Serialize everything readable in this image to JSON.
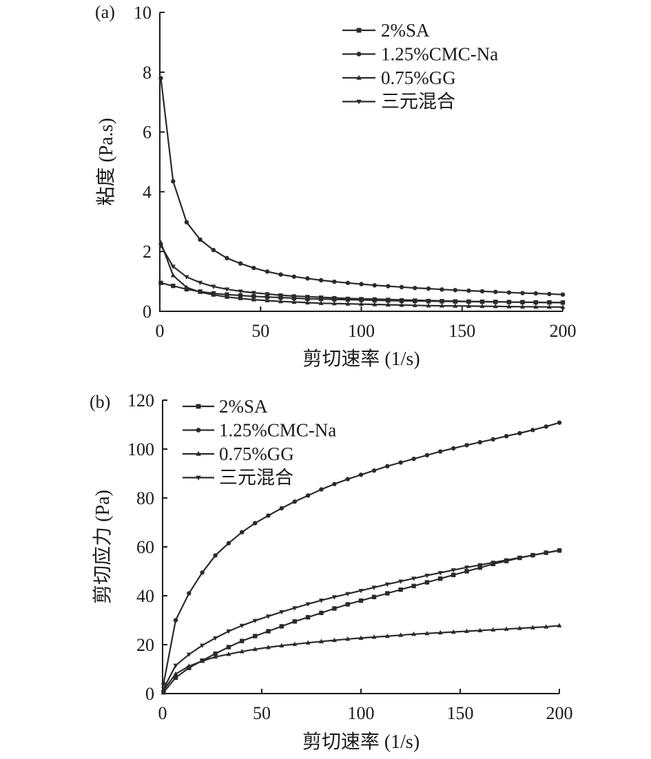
{
  "chart_data": [
    {
      "type": "line",
      "panel_label": "(a)",
      "xlabel": "剪切速率 (1/s)",
      "ylabel": "粘度 (Pa.s)",
      "xlim": [
        0,
        200
      ],
      "ylim": [
        0,
        10
      ],
      "xticks": [
        "0",
        "50",
        "100",
        "150",
        "200"
      ],
      "yticks": [
        "0",
        "2",
        "4",
        "6",
        "8",
        "10"
      ],
      "grid": false,
      "legend_position": "top-right",
      "series": [
        {
          "name": "2%SA",
          "marker": "square",
          "x": [
            0.5,
            6.6,
            13.3,
            20,
            26.6,
            33.3,
            40,
            46.6,
            53.3,
            60,
            66.6,
            73.3,
            80,
            86.6,
            93.3,
            100,
            106.6,
            113.3,
            120,
            126.6,
            133.3,
            140,
            146.6,
            153.3,
            160,
            166.6,
            173.3,
            180,
            186.6,
            193.3,
            200
          ],
          "y": [
            0.95,
            0.85,
            0.74,
            0.66,
            0.6,
            0.56,
            0.53,
            0.5,
            0.48,
            0.46,
            0.44,
            0.42,
            0.41,
            0.4,
            0.39,
            0.38,
            0.37,
            0.36,
            0.35,
            0.345,
            0.34,
            0.335,
            0.33,
            0.325,
            0.32,
            0.315,
            0.31,
            0.305,
            0.3,
            0.297,
            0.293
          ]
        },
        {
          "name": "1.25%CMC-Na",
          "marker": "circle",
          "x": [
            0.5,
            6.6,
            13.3,
            20,
            26.6,
            33.3,
            40,
            46.6,
            53.3,
            60,
            66.6,
            73.3,
            80,
            86.6,
            93.3,
            100,
            106.6,
            113.3,
            120,
            126.6,
            133.3,
            140,
            146.6,
            153.3,
            160,
            166.6,
            173.3,
            180,
            186.6,
            193.3,
            200
          ],
          "y": [
            7.8,
            4.35,
            2.98,
            2.4,
            2.05,
            1.78,
            1.6,
            1.45,
            1.33,
            1.23,
            1.16,
            1.1,
            1.04,
            0.99,
            0.95,
            0.91,
            0.87,
            0.84,
            0.81,
            0.78,
            0.76,
            0.73,
            0.71,
            0.69,
            0.67,
            0.65,
            0.63,
            0.61,
            0.6,
            0.58,
            0.56
          ]
        },
        {
          "name": "0.75%GG",
          "marker": "triangle-up",
          "x": [
            0.5,
            6.6,
            13.3,
            20,
            26.6,
            33.3,
            40,
            46.6,
            53.3,
            60,
            66.6,
            73.3,
            80,
            86.6,
            93.3,
            100,
            106.6,
            113.3,
            120,
            126.6,
            133.3,
            140,
            146.6,
            153.3,
            160,
            166.6,
            173.3,
            180,
            186.6,
            193.3,
            200
          ],
          "y": [
            2.3,
            1.2,
            0.8,
            0.64,
            0.55,
            0.48,
            0.43,
            0.39,
            0.36,
            0.33,
            0.31,
            0.29,
            0.27,
            0.26,
            0.25,
            0.24,
            0.23,
            0.22,
            0.21,
            0.2,
            0.19,
            0.185,
            0.18,
            0.175,
            0.17,
            0.165,
            0.16,
            0.155,
            0.15,
            0.145,
            0.14
          ]
        },
        {
          "name": "三元混合",
          "marker": "triangle-down",
          "x": [
            0.5,
            6.6,
            13.3,
            20,
            26.6,
            33.3,
            40,
            46.6,
            53.3,
            60,
            66.6,
            73.3,
            80,
            86.6,
            93.3,
            100,
            106.6,
            113.3,
            120,
            126.6,
            133.3,
            140,
            146.6,
            153.3,
            160,
            166.6,
            173.3,
            180,
            186.6,
            193.3,
            200
          ],
          "y": [
            2.2,
            1.5,
            1.15,
            0.96,
            0.83,
            0.74,
            0.67,
            0.62,
            0.58,
            0.54,
            0.51,
            0.49,
            0.47,
            0.45,
            0.43,
            0.42,
            0.41,
            0.395,
            0.38,
            0.37,
            0.36,
            0.35,
            0.34,
            0.33,
            0.325,
            0.32,
            0.31,
            0.305,
            0.3,
            0.295,
            0.29
          ]
        }
      ]
    },
    {
      "type": "line",
      "panel_label": "(b)",
      "xlabel": "剪切速率 (1/s)",
      "ylabel": "剪切应力 (Pa)",
      "xlim": [
        0,
        200
      ],
      "ylim": [
        0,
        120
      ],
      "xticks": [
        "0",
        "50",
        "100",
        "150",
        "200"
      ],
      "yticks": [
        "0",
        "20",
        "40",
        "60",
        "80",
        "100",
        "120"
      ],
      "grid": false,
      "legend_position": "top-left",
      "series": [
        {
          "name": "2%SA",
          "marker": "square",
          "x": [
            0.5,
            6.6,
            13.3,
            20,
            26.6,
            33.3,
            40,
            46.6,
            53.3,
            60,
            66.6,
            73.3,
            80,
            86.6,
            93.3,
            100,
            106.6,
            113.3,
            120,
            126.6,
            133.3,
            140,
            146.6,
            153.3,
            160,
            166.6,
            173.3,
            180,
            186.6,
            193.3,
            200
          ],
          "y": [
            0.5,
            6.5,
            10.5,
            13.5,
            16.3,
            19,
            21.5,
            23.5,
            25.5,
            27.5,
            29.5,
            31.2,
            33,
            34.8,
            36.5,
            38,
            39.5,
            41,
            42.5,
            44,
            45.5,
            47,
            48.5,
            50,
            51.5,
            53,
            54.2,
            55.5,
            56.6,
            57.6,
            58.5
          ]
        },
        {
          "name": "1.25%CMC-Na",
          "marker": "circle",
          "x": [
            0.5,
            6.6,
            13.3,
            20,
            26.6,
            33.3,
            40,
            46.6,
            53.3,
            60,
            66.6,
            73.3,
            80,
            86.6,
            93.3,
            100,
            106.6,
            113.3,
            120,
            126.6,
            133.3,
            140,
            146.6,
            153.3,
            160,
            166.6,
            173.3,
            180,
            186.6,
            193.3,
            200
          ],
          "y": [
            4,
            30,
            41,
            49.5,
            56.5,
            61.5,
            66,
            69.7,
            72.8,
            75.8,
            78.5,
            81,
            83.5,
            85.7,
            87.7,
            89.5,
            91.2,
            93,
            94.5,
            96,
            97.5,
            99,
            100.3,
            101.6,
            102.8,
            104,
            105.3,
            106.5,
            107.8,
            109.2,
            110.8
          ]
        },
        {
          "name": "0.75%GG",
          "marker": "triangle-up",
          "x": [
            0.5,
            6.6,
            13.3,
            20,
            26.6,
            33.3,
            40,
            46.6,
            53.3,
            60,
            66.6,
            73.3,
            80,
            86.6,
            93.3,
            100,
            106.6,
            113.3,
            120,
            126.6,
            133.3,
            140,
            146.6,
            153.3,
            160,
            166.6,
            173.3,
            180,
            186.6,
            193.3,
            200
          ],
          "y": [
            1.5,
            8,
            11.2,
            13.3,
            15,
            16.1,
            17.2,
            18.1,
            18.9,
            19.6,
            20.2,
            20.8,
            21.3,
            21.8,
            22.3,
            22.7,
            23.1,
            23.5,
            23.9,
            24.3,
            24.6,
            24.9,
            25.2,
            25.5,
            25.8,
            26.1,
            26.4,
            26.7,
            27,
            27.3,
            27.8
          ]
        },
        {
          "name": "三元混合",
          "marker": "triangle-down",
          "x": [
            0.5,
            6.6,
            13.3,
            20,
            26.6,
            33.3,
            40,
            46.6,
            53.3,
            60,
            66.6,
            73.3,
            80,
            86.6,
            93.3,
            100,
            106.6,
            113.3,
            120,
            126.6,
            133.3,
            140,
            146.6,
            153.3,
            160,
            166.6,
            173.3,
            180,
            186.6,
            193.3,
            200
          ],
          "y": [
            2,
            11.5,
            16,
            19.7,
            22.7,
            25.5,
            27.8,
            29.8,
            31.6,
            33.4,
            35,
            36.6,
            38.1,
            39.5,
            40.8,
            42.1,
            43.4,
            44.7,
            45.9,
            47.1,
            48.3,
            49.4,
            50.5,
            51.6,
            52.6,
            53.6,
            54.6,
            55.6,
            56.6,
            57.6,
            58.6
          ]
        }
      ]
    }
  ]
}
